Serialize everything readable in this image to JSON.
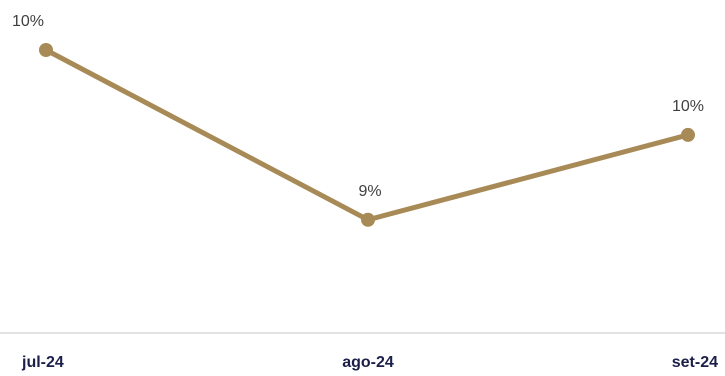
{
  "chart_data": {
    "type": "line",
    "categories": [
      "jul-24",
      "ago-24",
      "set-24"
    ],
    "series": [
      {
        "values": [
          10.5,
          9.0,
          9.75
        ],
        "data_labels": [
          "10%",
          "9%",
          "10%"
        ],
        "color": "#a88a57"
      }
    ],
    "title": "",
    "xlabel": "",
    "ylabel": "",
    "ylim": [
      8.0,
      10.5
    ],
    "grid": false,
    "legend": "none",
    "axis_color": "#d9d9d9",
    "tick_color": "#1b1f4a",
    "label_color": "#404040"
  }
}
